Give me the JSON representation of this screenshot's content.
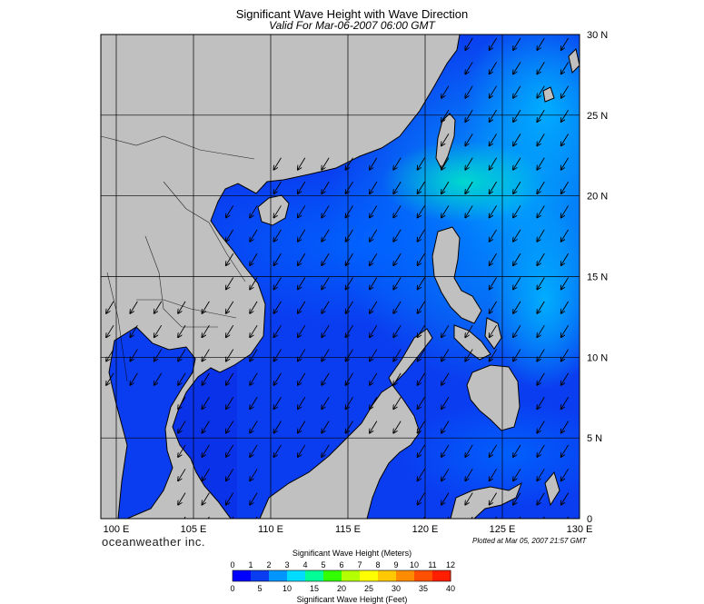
{
  "title": "Significant Wave Height with Wave Direction",
  "subtitle": "Valid For Mar-06-2007 06:00 GMT",
  "brand": "oceanweather inc.",
  "plotted": "Plotted at Mar 05, 2007 21:57 GMT",
  "map": {
    "lon_range": [
      99,
      130
    ],
    "lat_range": [
      0,
      30
    ],
    "lon_ticks": [
      "100 E",
      "105 E",
      "110 E",
      "115 E",
      "120 E",
      "125 E",
      "130 E"
    ],
    "lat_ticks": [
      "30 N",
      "25 N",
      "20 N",
      "15 N",
      "10 N",
      "5 N",
      "0"
    ],
    "land_color": "#c0c0c0",
    "water_color": "#0a3cf0",
    "wave_direction": "from north-east (arrows point south-west)"
  },
  "colorbar": {
    "meters_title": "Significant Wave Height (Meters)",
    "feet_title": "Significant Wave Height (Feet)",
    "meters_ticks": [
      "0",
      "1",
      "2",
      "3",
      "4",
      "5",
      "6",
      "7",
      "8",
      "9",
      "10",
      "11",
      "12"
    ],
    "feet_ticks": [
      "0",
      "5",
      "10",
      "15",
      "20",
      "25",
      "30",
      "35",
      "40"
    ],
    "colors": [
      "#0000ff",
      "#0a3cf0",
      "#0096ff",
      "#00dcff",
      "#00ff96",
      "#32ff00",
      "#b4ff00",
      "#ffff00",
      "#ffc800",
      "#ff8c00",
      "#ff5000",
      "#ff1e00"
    ]
  }
}
